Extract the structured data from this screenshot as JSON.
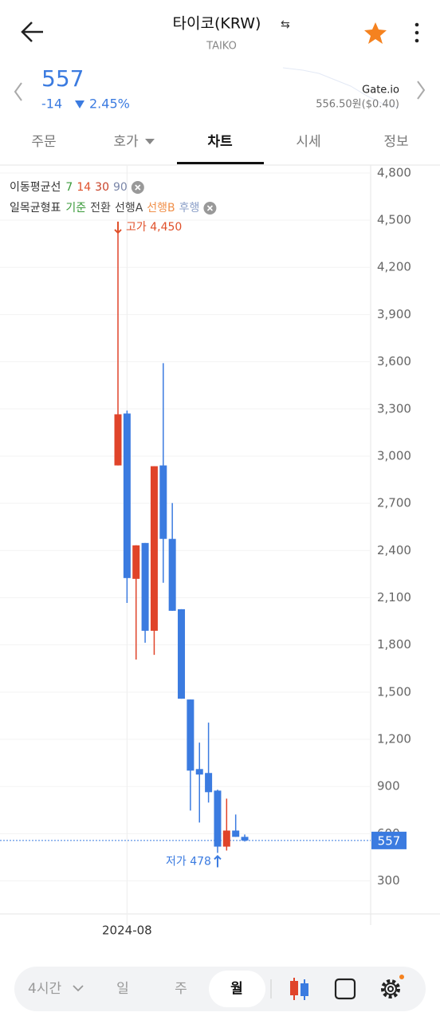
{
  "header": {
    "title": "타이코(KRW)",
    "subtitle": "TAIKO"
  },
  "price": {
    "value": "557",
    "change": "-14",
    "change_pct": "2.45%"
  },
  "exchange": {
    "name": "Gate.io",
    "price": "556.50원($0.40)"
  },
  "tabs": [
    "주문",
    "호가",
    "차트",
    "시세",
    "정보"
  ],
  "bottom_bar": {
    "interval": "4시간",
    "periods": [
      "일",
      "주",
      "월"
    ]
  },
  "chart_data": {
    "type": "candlestick",
    "indicators": {
      "ma": {
        "title": "이동평균선",
        "periods": [
          7,
          14,
          30,
          90
        ],
        "colors": [
          "#3a9a3a",
          "#e0502a",
          "#c8432a",
          "#7a86a8"
        ]
      },
      "ichimoku": {
        "title": "일목균형표",
        "lines": [
          "기준",
          "전환",
          "선행A",
          "선행B",
          "후행"
        ],
        "colors": [
          "#3a9a3a",
          "#444444",
          "#444444",
          "#f0904a",
          "#8ca0c8"
        ]
      }
    },
    "categories": [
      null,
      "2024-08",
      null,
      null,
      null,
      null,
      null,
      null,
      null,
      null,
      null,
      null,
      null,
      null,
      null
    ],
    "open": [
      2941,
      3271,
      2220,
      2448,
      1890,
      2941,
      2474,
      2027,
      1453,
      1011,
      986,
      874,
      518,
      620,
      580
    ],
    "close": [
      3266,
      2225,
      2433,
      1890,
      2936,
      2474,
      2017,
      1458,
      1001,
      976,
      864,
      518,
      620,
      580,
      557
    ],
    "high": [
      4450,
      3290,
      2433,
      2448,
      2936,
      3591,
      2702,
      2027,
      1453,
      1179,
      1306,
      880,
      823,
      722,
      595
    ],
    "low": [
      2941,
      2067,
      1707,
      1814,
      1737,
      2195,
      2017,
      1458,
      747,
      671,
      798,
      478,
      493,
      580,
      550
    ],
    "up_color": "#e0442a",
    "down_color": "#3b7be0",
    "ylim": [
      90,
      4850
    ],
    "yticks": [
      {
        "value": 4800,
        "label": "4,800"
      },
      {
        "value": 4500,
        "label": "4,500"
      },
      {
        "value": 4200,
        "label": "4,200"
      },
      {
        "value": 3900,
        "label": "3,900"
      },
      {
        "value": 3600,
        "label": "3,600"
      },
      {
        "value": 3300,
        "label": "3,300"
      },
      {
        "value": 3000,
        "label": "3,000"
      },
      {
        "value": 2700,
        "label": "2,700"
      },
      {
        "value": 2400,
        "label": "2,400"
      },
      {
        "value": 2100,
        "label": "2,100"
      },
      {
        "value": 1800,
        "label": "1,800"
      },
      {
        "value": 1500,
        "label": "1,500"
      },
      {
        "value": 1200,
        "label": "1,200"
      },
      900,
      600,
      300
    ],
    "high_annotation": "고가 4,450",
    "low_annotation": "저가 478",
    "last": 557,
    "last_label": "557",
    "grid": true
  }
}
